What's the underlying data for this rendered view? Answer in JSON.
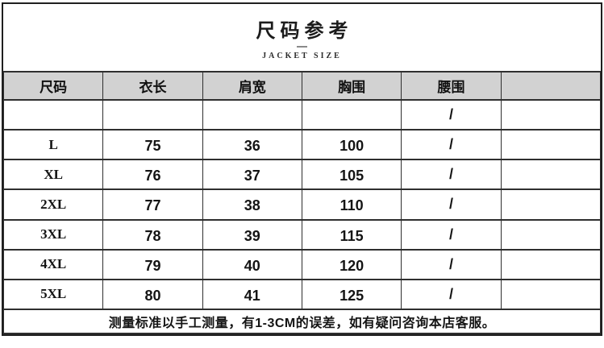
{
  "title": {
    "heading": "尺码参考",
    "subtitle": "JACKET SIZE"
  },
  "size_table": {
    "columns": [
      "尺码",
      "衣长",
      "肩宽",
      "胸围",
      "腰围",
      ""
    ],
    "rows": [
      [
        "",
        "",
        "",
        "",
        "/",
        ""
      ],
      [
        "L",
        "75",
        "36",
        "100",
        "/",
        ""
      ],
      [
        "XL",
        "76",
        "37",
        "105",
        "/",
        ""
      ],
      [
        "2XL",
        "77",
        "38",
        "110",
        "/",
        ""
      ],
      [
        "3XL",
        "78",
        "39",
        "115",
        "/",
        ""
      ],
      [
        "4XL",
        "79",
        "40",
        "120",
        "/",
        ""
      ],
      [
        "5XL",
        "80",
        "41",
        "125",
        "/",
        ""
      ]
    ],
    "note": "测量标准以手工测量，有1-3CM的误差，如有疑问咨询本店客服。"
  },
  "colors": {
    "header_bg": "#d2d2d2",
    "border": "#2f2f2f",
    "text": "#141414"
  }
}
